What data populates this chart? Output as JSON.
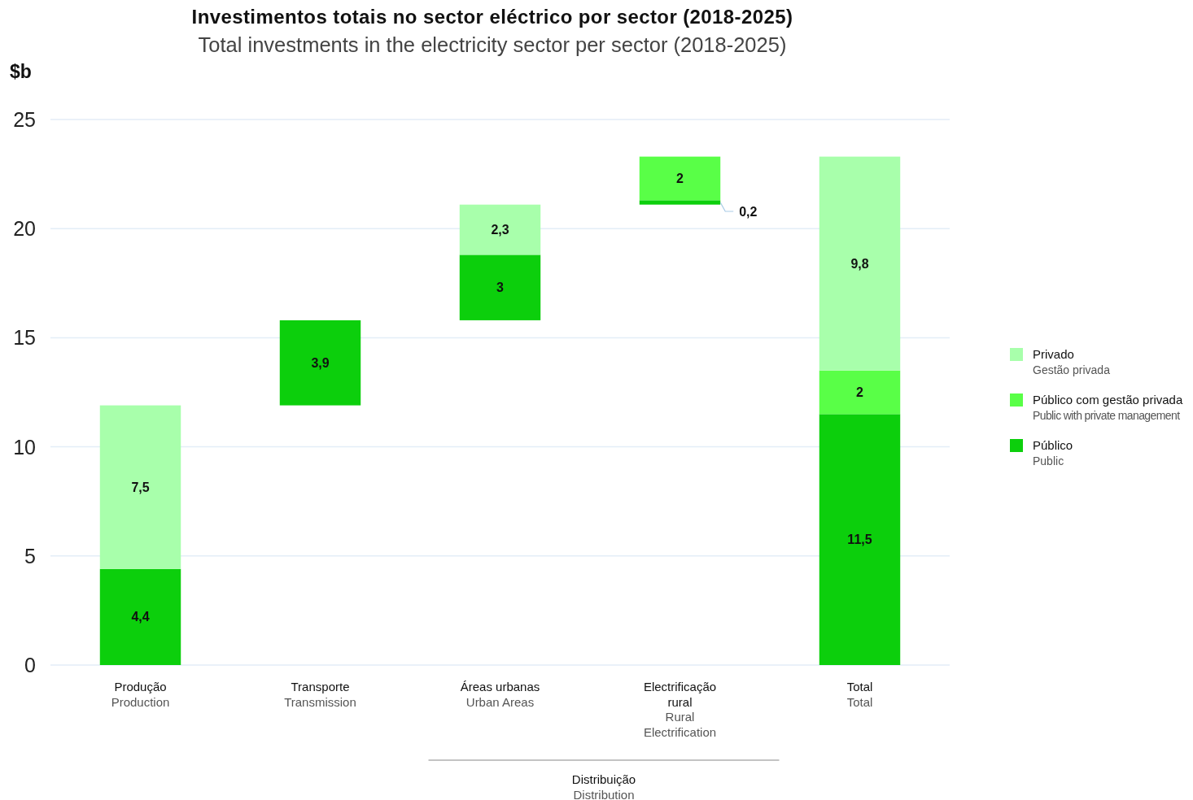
{
  "chart_data": {
    "type": "bar",
    "title": "Investimentos totais no sector eléctrico por sector (2018-2025)",
    "subtitle": "Total investments in the electricity sector per sector (2018-2025)",
    "ylabel": "$b",
    "categories": [
      "Produção\nProduction",
      "Transporte\nTransmission",
      "Áreas urbanas\nUrban Areas",
      "Electrificação rural\nRural Electrification",
      "Total\nTotal"
    ],
    "stacked": true,
    "series": [
      {
        "name": "Público\nPublic",
        "color": "#0ccf0c",
        "values": [
          4.4,
          3.9,
          3,
          0.2,
          11.5
        ],
        "base": [
          0,
          11.9,
          15.8,
          21.1,
          0
        ],
        "value_labels": [
          "4,4",
          "3,9",
          "3",
          "0,2",
          "11,5"
        ]
      },
      {
        "name": "Público com gestão privada\nPublic with private management",
        "color": "#59ff47",
        "values": [
          null,
          null,
          null,
          2,
          2
        ],
        "base": [
          null,
          null,
          null,
          21.3,
          11.5
        ],
        "value_labels": [
          null,
          null,
          null,
          "2",
          "2"
        ]
      },
      {
        "name": "Privado\nGestão privada",
        "color": "#a8ffab",
        "values": [
          7.5,
          null,
          2.3,
          null,
          9.8
        ],
        "base": [
          4.4,
          null,
          18.8,
          null,
          13.5
        ],
        "value_labels": [
          "7,5",
          null,
          "2,3",
          null,
          "9,8"
        ]
      }
    ],
    "ylim": [
      0,
      25
    ],
    "yticks": [
      0,
      5,
      10,
      15,
      20,
      25
    ],
    "grid": "y",
    "legend": "right",
    "annotations": [
      "Distribuição\nDistribution"
    ]
  }
}
